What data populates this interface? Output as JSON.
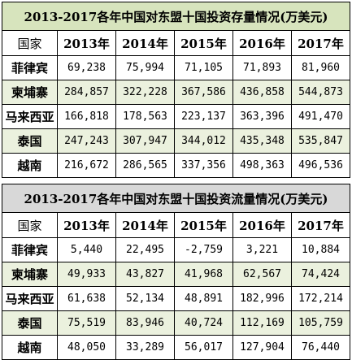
{
  "stock_table": {
    "title": "2013-2017各年中国对东盟十国投资存量情况(万美元)",
    "country_header": "国家",
    "years": [
      "2013年",
      "2014年",
      "2015年",
      "2016年",
      "2017年"
    ],
    "rows": [
      {
        "country": "菲律宾",
        "values": [
          "69,238",
          "75,994",
          "71,105",
          "71,893",
          "81,960"
        ]
      },
      {
        "country": "柬埔寨",
        "values": [
          "284,857",
          "322,228",
          "367,586",
          "436,858",
          "544,873"
        ]
      },
      {
        "country": "马来西亚",
        "values": [
          "166,818",
          "178,563",
          "223,137",
          "363,396",
          "491,470"
        ]
      },
      {
        "country": "泰国",
        "values": [
          "247,243",
          "307,947",
          "344,012",
          "435,348",
          "535,847"
        ]
      },
      {
        "country": "越南",
        "values": [
          "216,672",
          "286,565",
          "337,356",
          "498,363",
          "496,536"
        ]
      }
    ]
  },
  "flow_table": {
    "title": "2013-2017各年中国对东盟十国投资流量情况(万美元)",
    "country_header": "国家",
    "years": [
      "2013年",
      "2014年",
      "2015年",
      "2016年",
      "2017年"
    ],
    "rows": [
      {
        "country": "菲律宾",
        "values": [
          "5,440",
          "22,495",
          "-2,759",
          "3,221",
          "10,884"
        ]
      },
      {
        "country": "柬埔寨",
        "values": [
          "49,933",
          "43,827",
          "41,968",
          "62,567",
          "74,424"
        ]
      },
      {
        "country": "马来西亚",
        "values": [
          "61,638",
          "52,134",
          "48,891",
          "182,996",
          "172,214"
        ]
      },
      {
        "country": "泰国",
        "values": [
          "75,519",
          "83,946",
          "40,724",
          "112,169",
          "105,759"
        ]
      },
      {
        "country": "越南",
        "values": [
          "48,050",
          "33,289",
          "56,017",
          "127,904",
          "76,440"
        ]
      }
    ]
  },
  "colors": {
    "stock_title_bg": "#d7e4bd",
    "flow_title_bg": "#d8d8d8",
    "shaded_row_bg": "#ebf1de"
  }
}
